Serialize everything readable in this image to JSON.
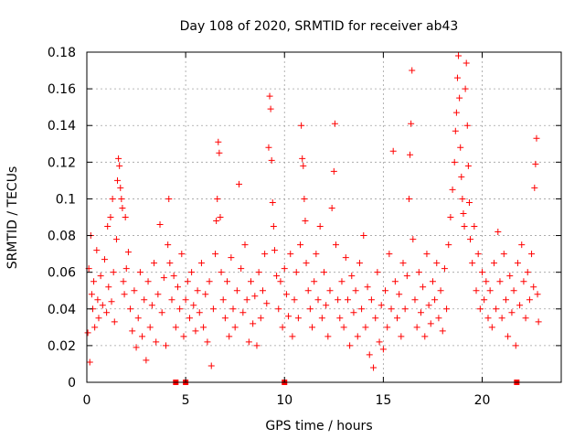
{
  "chart_data": {
    "type": "scatter",
    "title": "Day 108 of 2020, SRMTID for receiver ab43",
    "xlabel": "GPS time / hours",
    "ylabel": "SRMTID / TECUs",
    "xlim": [
      0,
      24
    ],
    "ylim": [
      0,
      0.18
    ],
    "xticks": [
      0,
      5,
      10,
      15,
      20
    ],
    "xtick_labels": [
      "0",
      "5",
      "10",
      "15",
      "20"
    ],
    "yticks": [
      0,
      0.02,
      0.04,
      0.06,
      0.08,
      0.1,
      0.12,
      0.14,
      0.16,
      0.18
    ],
    "ytick_labels": [
      "0",
      "0.02",
      "0.04",
      "0.06",
      "0.08",
      "0.1",
      "0.12",
      "0.14",
      "0.16",
      "0.18"
    ],
    "grid": true,
    "marker": "plus",
    "color": "#ff0000",
    "series": [
      {
        "name": "SRMTID",
        "points": [
          [
            0.05,
            0.027
          ],
          [
            0.1,
            0.062
          ],
          [
            0.15,
            0.011
          ],
          [
            0.2,
            0.08
          ],
          [
            0.25,
            0.048
          ],
          [
            0.3,
            0.04
          ],
          [
            0.35,
            0.055
          ],
          [
            0.4,
            0.03
          ],
          [
            0.5,
            0.072
          ],
          [
            0.55,
            0.045
          ],
          [
            0.6,
            0.035
          ],
          [
            0.7,
            0.058
          ],
          [
            0.8,
            0.042
          ],
          [
            0.9,
            0.067
          ],
          [
            1.0,
            0.038
          ],
          [
            1.05,
            0.085
          ],
          [
            1.1,
            0.052
          ],
          [
            1.2,
            0.09
          ],
          [
            1.25,
            0.044
          ],
          [
            1.3,
            0.1
          ],
          [
            1.35,
            0.06
          ],
          [
            1.4,
            0.033
          ],
          [
            1.5,
            0.078
          ],
          [
            1.55,
            0.11
          ],
          [
            1.6,
            0.122
          ],
          [
            1.65,
            0.118
          ],
          [
            1.7,
            0.106
          ],
          [
            1.75,
            0.1
          ],
          [
            1.8,
            0.095
          ],
          [
            1.85,
            0.055
          ],
          [
            1.9,
            0.048
          ],
          [
            1.95,
            0.09
          ],
          [
            2.0,
            0.062
          ],
          [
            2.1,
            0.071
          ],
          [
            2.2,
            0.04
          ],
          [
            2.3,
            0.028
          ],
          [
            2.4,
            0.05
          ],
          [
            2.5,
            0.019
          ],
          [
            2.6,
            0.035
          ],
          [
            2.7,
            0.06
          ],
          [
            2.8,
            0.025
          ],
          [
            2.9,
            0.045
          ],
          [
            3.0,
            0.012
          ],
          [
            3.1,
            0.055
          ],
          [
            3.2,
            0.03
          ],
          [
            3.3,
            0.042
          ],
          [
            3.4,
            0.065
          ],
          [
            3.5,
            0.022
          ],
          [
            3.6,
            0.048
          ],
          [
            3.7,
            0.086
          ],
          [
            3.8,
            0.038
          ],
          [
            3.9,
            0.057
          ],
          [
            4.0,
            0.02
          ],
          [
            4.1,
            0.075
          ],
          [
            4.15,
            0.1
          ],
          [
            4.2,
            0.065
          ],
          [
            4.3,
            0.045
          ],
          [
            4.4,
            0.058
          ],
          [
            4.5,
            0.03
          ],
          [
            4.6,
            0.052
          ],
          [
            4.7,
            0.04
          ],
          [
            4.8,
            0.07
          ],
          [
            4.9,
            0.025
          ],
          [
            5.0,
            0.045
          ],
          [
            5.1,
            0.055
          ],
          [
            5.2,
            0.035
          ],
          [
            5.3,
            0.06
          ],
          [
            5.4,
            0.042
          ],
          [
            5.5,
            0.028
          ],
          [
            5.6,
            0.05
          ],
          [
            5.7,
            0.038
          ],
          [
            5.8,
            0.065
          ],
          [
            5.9,
            0.03
          ],
          [
            6.0,
            0.048
          ],
          [
            6.1,
            0.022
          ],
          [
            6.2,
            0.055
          ],
          [
            6.3,
            0.009
          ],
          [
            6.4,
            0.04
          ],
          [
            6.5,
            0.07
          ],
          [
            6.55,
            0.088
          ],
          [
            6.6,
            0.1
          ],
          [
            6.65,
            0.131
          ],
          [
            6.7,
            0.125
          ],
          [
            6.75,
            0.09
          ],
          [
            6.8,
            0.06
          ],
          [
            6.9,
            0.045
          ],
          [
            7.0,
            0.035
          ],
          [
            7.1,
            0.055
          ],
          [
            7.2,
            0.025
          ],
          [
            7.3,
            0.068
          ],
          [
            7.4,
            0.04
          ],
          [
            7.5,
            0.03
          ],
          [
            7.6,
            0.05
          ],
          [
            7.7,
            0.108
          ],
          [
            7.8,
            0.062
          ],
          [
            7.9,
            0.038
          ],
          [
            8.0,
            0.075
          ],
          [
            8.1,
            0.045
          ],
          [
            8.2,
            0.022
          ],
          [
            8.3,
            0.055
          ],
          [
            8.4,
            0.032
          ],
          [
            8.5,
            0.047
          ],
          [
            8.6,
            0.02
          ],
          [
            8.7,
            0.06
          ],
          [
            8.8,
            0.035
          ],
          [
            8.9,
            0.05
          ],
          [
            9.0,
            0.07
          ],
          [
            9.1,
            0.043
          ],
          [
            9.2,
            0.128
          ],
          [
            9.25,
            0.156
          ],
          [
            9.3,
            0.149
          ],
          [
            9.35,
            0.121
          ],
          [
            9.4,
            0.098
          ],
          [
            9.45,
            0.085
          ],
          [
            9.5,
            0.072
          ],
          [
            9.6,
            0.058
          ],
          [
            9.7,
            0.04
          ],
          [
            9.8,
            0.055
          ],
          [
            9.9,
            0.03
          ],
          [
            10.0,
            0.062
          ],
          [
            10.1,
            0.048
          ],
          [
            10.2,
            0.036
          ],
          [
            10.3,
            0.07
          ],
          [
            10.4,
            0.025
          ],
          [
            10.5,
            0.045
          ],
          [
            10.6,
            0.06
          ],
          [
            10.7,
            0.035
          ],
          [
            10.8,
            0.075
          ],
          [
            10.85,
            0.14
          ],
          [
            10.9,
            0.122
          ],
          [
            10.95,
            0.118
          ],
          [
            11.0,
            0.1
          ],
          [
            11.05,
            0.088
          ],
          [
            11.1,
            0.065
          ],
          [
            11.2,
            0.05
          ],
          [
            11.3,
            0.04
          ],
          [
            11.4,
            0.03
          ],
          [
            11.5,
            0.055
          ],
          [
            11.6,
            0.07
          ],
          [
            11.7,
            0.045
          ],
          [
            11.8,
            0.085
          ],
          [
            11.9,
            0.035
          ],
          [
            12.0,
            0.06
          ],
          [
            12.1,
            0.042
          ],
          [
            12.2,
            0.025
          ],
          [
            12.3,
            0.05
          ],
          [
            12.4,
            0.095
          ],
          [
            12.5,
            0.115
          ],
          [
            12.55,
            0.141
          ],
          [
            12.6,
            0.075
          ],
          [
            12.7,
            0.045
          ],
          [
            12.8,
            0.035
          ],
          [
            12.9,
            0.055
          ],
          [
            13.0,
            0.03
          ],
          [
            13.1,
            0.068
          ],
          [
            13.2,
            0.045
          ],
          [
            13.3,
            0.02
          ],
          [
            13.4,
            0.058
          ],
          [
            13.5,
            0.038
          ],
          [
            13.6,
            0.05
          ],
          [
            13.7,
            0.025
          ],
          [
            13.8,
            0.065
          ],
          [
            13.9,
            0.04
          ],
          [
            14.0,
            0.08
          ],
          [
            14.1,
            0.03
          ],
          [
            14.2,
            0.052
          ],
          [
            14.3,
            0.015
          ],
          [
            14.4,
            0.045
          ],
          [
            14.5,
            0.008
          ],
          [
            14.6,
            0.035
          ],
          [
            14.7,
            0.06
          ],
          [
            14.8,
            0.022
          ],
          [
            14.9,
            0.042
          ],
          [
            15.0,
            0.018
          ],
          [
            15.1,
            0.05
          ],
          [
            15.2,
            0.03
          ],
          [
            15.3,
            0.07
          ],
          [
            15.4,
            0.04
          ],
          [
            15.5,
            0.126
          ],
          [
            15.6,
            0.055
          ],
          [
            15.7,
            0.035
          ],
          [
            15.8,
            0.048
          ],
          [
            15.9,
            0.025
          ],
          [
            16.0,
            0.065
          ],
          [
            16.1,
            0.04
          ],
          [
            16.2,
            0.058
          ],
          [
            16.3,
            0.1
          ],
          [
            16.35,
            0.124
          ],
          [
            16.4,
            0.141
          ],
          [
            16.45,
            0.17
          ],
          [
            16.5,
            0.078
          ],
          [
            16.6,
            0.045
          ],
          [
            16.7,
            0.03
          ],
          [
            16.8,
            0.06
          ],
          [
            16.9,
            0.038
          ],
          [
            17.0,
            0.052
          ],
          [
            17.1,
            0.025
          ],
          [
            17.2,
            0.07
          ],
          [
            17.3,
            0.042
          ],
          [
            17.4,
            0.032
          ],
          [
            17.5,
            0.055
          ],
          [
            17.6,
            0.045
          ],
          [
            17.7,
            0.065
          ],
          [
            17.8,
            0.035
          ],
          [
            17.9,
            0.05
          ],
          [
            18.0,
            0.028
          ],
          [
            18.1,
            0.062
          ],
          [
            18.2,
            0.04
          ],
          [
            18.3,
            0.075
          ],
          [
            18.4,
            0.09
          ],
          [
            18.5,
            0.105
          ],
          [
            18.6,
            0.12
          ],
          [
            18.65,
            0.137
          ],
          [
            18.7,
            0.147
          ],
          [
            18.75,
            0.166
          ],
          [
            18.8,
            0.178
          ],
          [
            18.85,
            0.155
          ],
          [
            18.9,
            0.128
          ],
          [
            18.95,
            0.112
          ],
          [
            19.0,
            0.1
          ],
          [
            19.05,
            0.092
          ],
          [
            19.1,
            0.085
          ],
          [
            19.15,
            0.16
          ],
          [
            19.2,
            0.174
          ],
          [
            19.25,
            0.14
          ],
          [
            19.3,
            0.118
          ],
          [
            19.35,
            0.098
          ],
          [
            19.4,
            0.078
          ],
          [
            19.5,
            0.065
          ],
          [
            19.6,
            0.085
          ],
          [
            19.7,
            0.05
          ],
          [
            19.8,
            0.07
          ],
          [
            19.9,
            0.04
          ],
          [
            20.0,
            0.06
          ],
          [
            20.1,
            0.045
          ],
          [
            20.2,
            0.055
          ],
          [
            20.3,
            0.035
          ],
          [
            20.4,
            0.05
          ],
          [
            20.5,
            0.03
          ],
          [
            20.6,
            0.065
          ],
          [
            20.7,
            0.04
          ],
          [
            20.8,
            0.082
          ],
          [
            20.9,
            0.055
          ],
          [
            21.0,
            0.035
          ],
          [
            21.1,
            0.07
          ],
          [
            21.2,
            0.045
          ],
          [
            21.3,
            0.025
          ],
          [
            21.4,
            0.058
          ],
          [
            21.5,
            0.038
          ],
          [
            21.6,
            0.05
          ],
          [
            21.7,
            0.02
          ],
          [
            21.8,
            0.065
          ],
          [
            21.9,
            0.042
          ],
          [
            22.0,
            0.075
          ],
          [
            22.1,
            0.055
          ],
          [
            22.2,
            0.035
          ],
          [
            22.3,
            0.06
          ],
          [
            22.4,
            0.045
          ],
          [
            22.5,
            0.07
          ],
          [
            22.6,
            0.052
          ],
          [
            22.65,
            0.106
          ],
          [
            22.7,
            0.119
          ],
          [
            22.75,
            0.133
          ],
          [
            22.8,
            0.048
          ],
          [
            22.85,
            0.033
          ]
        ]
      }
    ],
    "axis_markers_x": [
      4.5,
      5.0,
      10.0,
      21.75
    ]
  }
}
